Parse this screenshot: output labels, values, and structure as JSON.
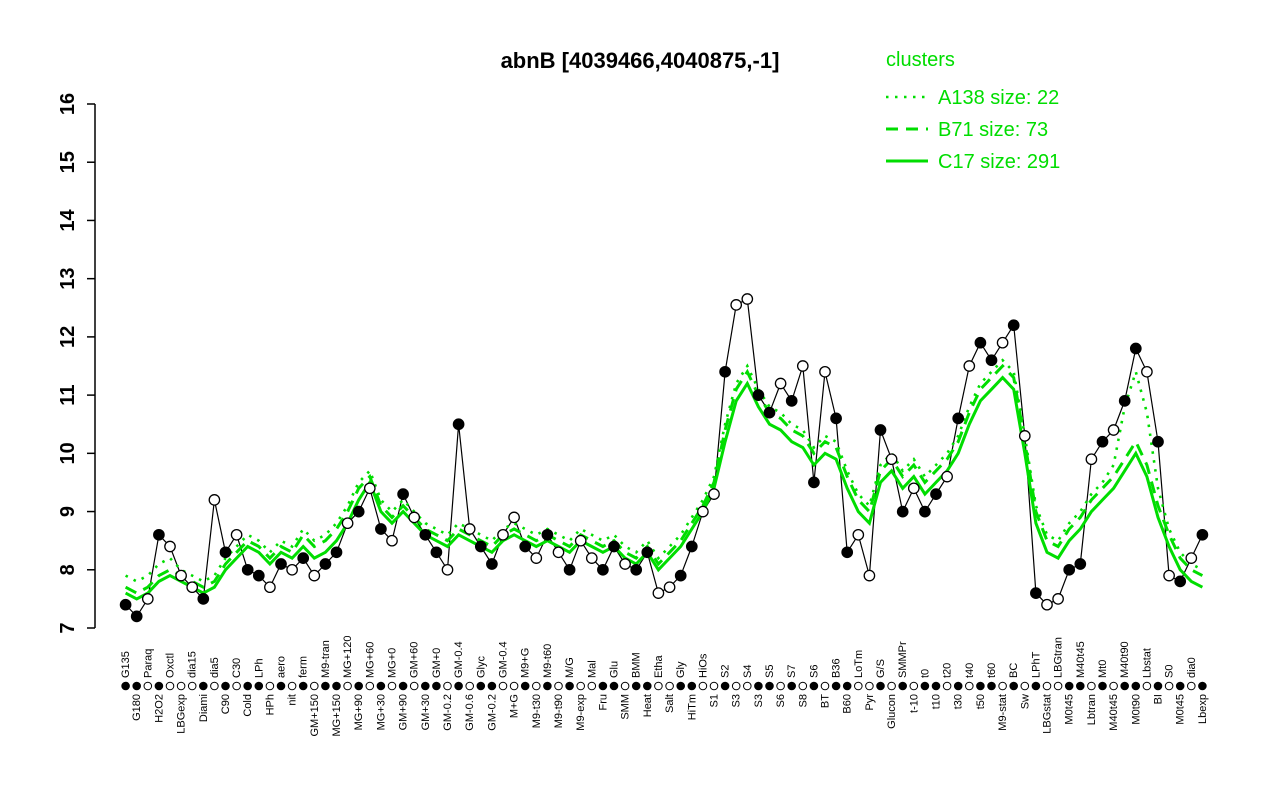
{
  "figure": {
    "title": "abnB [4039466,4040875,-1]",
    "legend": {
      "heading": "clusters",
      "color": "#00dd00",
      "entries": [
        {
          "label": "A138 size: 22",
          "style": "dotted"
        },
        {
          "label": "B71 size: 73",
          "style": "dashed"
        },
        {
          "label": "C17 size: 291",
          "style": "solid"
        }
      ]
    }
  },
  "chart_data": {
    "type": "line",
    "title": "abnB [4039466,4040875,-1]",
    "xlabel": "",
    "ylabel": "",
    "ylim": [
      7,
      16
    ],
    "y_ticks": [
      7,
      8,
      9,
      10,
      11,
      12,
      13,
      14,
      15,
      16
    ],
    "grid": false,
    "legend_position": "top-right",
    "categories": [
      "G135",
      "G180",
      "Paraq",
      "H2O2",
      "Oxctl",
      "LBGexp",
      "dia15",
      "Diami",
      "dia5",
      "C90",
      "C30",
      "Cold",
      "LPh",
      "HPh",
      "aero",
      "nit",
      "ferm",
      "GM+150",
      "M9-tran",
      "MG+150",
      "MG+120",
      "MG+90",
      "MG+60",
      "MG+30",
      "MG+0",
      "GM+90",
      "GM+60",
      "GM+30",
      "GM+0",
      "GM-0.2",
      "GM-0.4",
      "GM-0.6",
      "Glyc",
      "GM-0.2",
      "GM-0.4",
      "M+G",
      "M9+G",
      "M9-t30",
      "M9-t60",
      "M9-t90",
      "M/G",
      "M9-exp",
      "Mal",
      "Fru",
      "Glu",
      "SMM",
      "BMM",
      "Heat",
      "Etha",
      "Salt",
      "Gly",
      "HiTm",
      "HiOs",
      "S1",
      "S2",
      "S3",
      "S4",
      "S3",
      "S5",
      "S6",
      "S7",
      "S8",
      "S6",
      "BT",
      "B36",
      "B60",
      "LoTm",
      "Pyr",
      "G/S",
      "Glucon",
      "SMMPr",
      "t-10",
      "t0",
      "t10",
      "t20",
      "t30",
      "t40",
      "t50",
      "t60",
      "M9-stat",
      "BC",
      "Sw",
      "LPhT",
      "LBGstat",
      "LBGtran",
      "M0t45",
      "M40t45",
      "Lbtran",
      "Mt0",
      "M40t45",
      "M40t90",
      "M0t90",
      "Lbstat",
      "BI",
      "S0",
      "M0t45",
      "dia0",
      "Lbexp"
    ],
    "series": [
      {
        "name": "abnB expression",
        "color": "#000000",
        "marker": "circle",
        "line": "solid",
        "values": [
          7.4,
          7.2,
          7.5,
          8.6,
          8.4,
          7.9,
          7.7,
          7.5,
          9.2,
          8.3,
          8.6,
          8.0,
          7.9,
          7.7,
          8.1,
          8.0,
          8.2,
          7.9,
          8.1,
          8.3,
          8.8,
          9.0,
          9.4,
          8.7,
          8.5,
          9.3,
          8.9,
          8.6,
          8.3,
          8.0,
          10.5,
          8.7,
          8.4,
          8.1,
          8.6,
          8.9,
          8.4,
          8.2,
          8.6,
          8.3,
          8.0,
          8.5,
          8.2,
          8.0,
          8.4,
          8.1,
          8.0,
          8.3,
          7.6,
          7.7,
          7.9,
          8.4,
          9.0,
          9.3,
          11.4,
          12.55,
          12.65,
          11.0,
          10.7,
          11.2,
          10.9,
          11.5,
          9.5,
          11.4,
          10.6,
          8.3,
          8.6,
          7.9,
          10.4,
          9.9,
          9.0,
          9.4,
          9.0,
          9.3,
          9.6,
          10.6,
          11.5,
          11.9,
          11.6,
          11.9,
          12.2,
          10.3,
          7.6,
          7.4,
          7.5,
          8.0,
          8.1,
          9.9,
          10.2,
          10.4,
          10.9,
          11.8,
          11.4,
          10.2,
          7.9,
          7.8,
          8.2,
          8.6
        ],
        "marker_filled": [
          1,
          1,
          0,
          1,
          0,
          0,
          0,
          1,
          0,
          1,
          0,
          1,
          1,
          0,
          1,
          0,
          1,
          0,
          1,
          1,
          0,
          1,
          0,
          1,
          0,
          1,
          0,
          1,
          1,
          0,
          1,
          0,
          1,
          1,
          0,
          0,
          1,
          0,
          1,
          0,
          1,
          0,
          0,
          1,
          1,
          0,
          1,
          1,
          0,
          0,
          1,
          1,
          0,
          0,
          1,
          0,
          0,
          1,
          1,
          0,
          1,
          0,
          1,
          0,
          1,
          1,
          0,
          0,
          1,
          0,
          1,
          0,
          1,
          1,
          0,
          1,
          0,
          1,
          1,
          0,
          1,
          0,
          1,
          0,
          0,
          1,
          1,
          0,
          1,
          0,
          1,
          1,
          0,
          1,
          0,
          1,
          0,
          1
        ]
      },
      {
        "name": "A138 size: 22",
        "color": "#00dd00",
        "line": "dotted",
        "values": [
          7.9,
          7.8,
          7.9,
          8.1,
          8.2,
          8.0,
          7.9,
          7.8,
          7.9,
          8.2,
          8.4,
          8.6,
          8.5,
          8.3,
          8.5,
          8.4,
          8.7,
          8.5,
          8.6,
          8.8,
          9.1,
          9.5,
          9.7,
          9.2,
          9.0,
          9.2,
          9.0,
          8.8,
          8.7,
          8.6,
          8.8,
          8.7,
          8.6,
          8.5,
          8.7,
          8.8,
          8.7,
          8.6,
          8.7,
          8.6,
          8.5,
          8.7,
          8.6,
          8.5,
          8.6,
          8.4,
          8.3,
          8.5,
          8.2,
          8.4,
          8.6,
          8.9,
          9.2,
          9.6,
          10.5,
          11.2,
          11.5,
          11.1,
          10.8,
          10.7,
          10.5,
          10.4,
          10.1,
          10.3,
          10.2,
          9.7,
          9.3,
          9.1,
          9.8,
          10.0,
          9.7,
          9.9,
          9.6,
          9.8,
          10.0,
          10.3,
          10.8,
          11.2,
          11.4,
          11.6,
          11.4,
          10.3,
          9.1,
          8.6,
          8.5,
          8.8,
          9.0,
          9.3,
          9.5,
          9.8,
          10.8,
          11.4,
          10.7,
          9.4,
          8.7,
          8.3,
          8.1,
          8.0
        ]
      },
      {
        "name": "B71 size: 73",
        "color": "#00dd00",
        "line": "dashed",
        "values": [
          7.7,
          7.6,
          7.7,
          7.9,
          8.0,
          7.9,
          7.8,
          7.7,
          7.8,
          8.1,
          8.3,
          8.5,
          8.4,
          8.2,
          8.4,
          8.3,
          8.6,
          8.4,
          8.5,
          8.7,
          9.0,
          9.4,
          9.6,
          9.1,
          8.9,
          9.1,
          8.9,
          8.7,
          8.6,
          8.5,
          8.7,
          8.6,
          8.5,
          8.4,
          8.6,
          8.7,
          8.6,
          8.5,
          8.6,
          8.5,
          8.4,
          8.6,
          8.5,
          8.4,
          8.5,
          8.3,
          8.2,
          8.4,
          8.1,
          8.3,
          8.5,
          8.8,
          9.1,
          9.5,
          10.4,
          11.1,
          11.4,
          11.0,
          10.7,
          10.6,
          10.4,
          10.3,
          10.0,
          10.2,
          10.1,
          9.6,
          9.2,
          9.0,
          9.7,
          9.9,
          9.6,
          9.8,
          9.5,
          9.7,
          9.9,
          10.2,
          10.7,
          11.1,
          11.3,
          11.5,
          11.3,
          10.2,
          9.0,
          8.5,
          8.4,
          8.7,
          8.9,
          9.2,
          9.4,
          9.6,
          9.9,
          10.2,
          9.8,
          9.1,
          8.6,
          8.2,
          8.0,
          7.9
        ]
      },
      {
        "name": "C17 size: 291",
        "color": "#00dd00",
        "line": "solid",
        "values": [
          7.6,
          7.5,
          7.6,
          7.8,
          7.9,
          7.8,
          7.7,
          7.6,
          7.7,
          8.0,
          8.2,
          8.4,
          8.3,
          8.1,
          8.3,
          8.2,
          8.4,
          8.2,
          8.3,
          8.5,
          8.8,
          9.2,
          9.5,
          9.0,
          8.8,
          9.0,
          8.8,
          8.6,
          8.5,
          8.4,
          8.6,
          8.5,
          8.4,
          8.3,
          8.5,
          8.6,
          8.5,
          8.4,
          8.5,
          8.4,
          8.3,
          8.5,
          8.4,
          8.3,
          8.4,
          8.2,
          8.1,
          8.3,
          8.0,
          8.2,
          8.4,
          8.7,
          9.0,
          9.4,
          10.2,
          10.9,
          11.2,
          10.8,
          10.5,
          10.4,
          10.2,
          10.1,
          9.8,
          10.0,
          9.9,
          9.4,
          9.0,
          8.8,
          9.5,
          9.7,
          9.4,
          9.6,
          9.3,
          9.5,
          9.7,
          10.0,
          10.5,
          10.9,
          11.1,
          11.3,
          11.1,
          10.0,
          8.8,
          8.3,
          8.2,
          8.5,
          8.7,
          9.0,
          9.2,
          9.4,
          9.7,
          10.0,
          9.6,
          8.9,
          8.4,
          8.0,
          7.8,
          7.7
        ]
      }
    ]
  }
}
